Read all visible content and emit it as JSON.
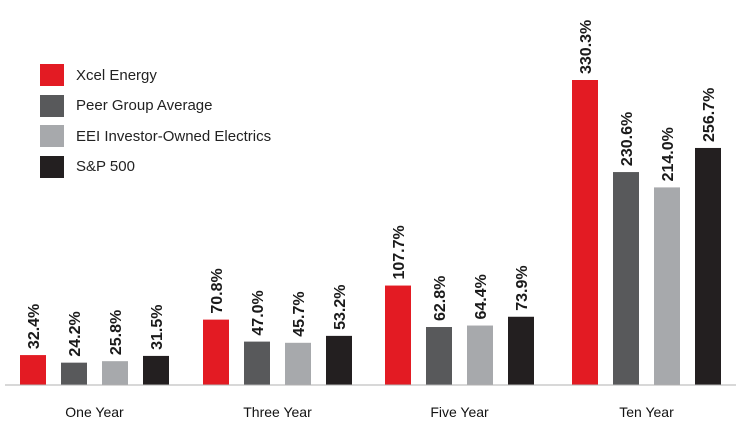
{
  "chart_data": {
    "type": "bar",
    "categories": [
      "One Year",
      "Three Year",
      "Five Year",
      "Ten Year"
    ],
    "series": [
      {
        "name": "Xcel Energy",
        "color": "#e31b23",
        "values": [
          32.4,
          70.8,
          107.7,
          330.3
        ],
        "labels": [
          "32.4%",
          "70.8%",
          "107.7%",
          "330.3%"
        ]
      },
      {
        "name": "Peer Group Average",
        "color": "#58595b",
        "values": [
          24.2,
          47.0,
          62.8,
          230.6
        ],
        "labels": [
          "24.2%",
          "47.0%",
          "62.8%",
          "230.6%"
        ]
      },
      {
        "name": "EEI Investor-Owned Electrics",
        "color": "#a7a9ac",
        "values": [
          25.8,
          45.7,
          64.4,
          214.0
        ],
        "labels": [
          "25.8%",
          "45.7%",
          "64.4%",
          "214.0%"
        ]
      },
      {
        "name": "S&P 500",
        "color": "#231f20",
        "values": [
          31.5,
          53.2,
          73.9,
          256.7
        ],
        "labels": [
          "31.5%",
          "53.2%",
          "73.9%",
          "256.7%"
        ]
      }
    ],
    "ylim": [
      0,
      330.3
    ],
    "legend": "top-left",
    "grid": false,
    "title": "",
    "xlabel": "",
    "ylabel": ""
  }
}
